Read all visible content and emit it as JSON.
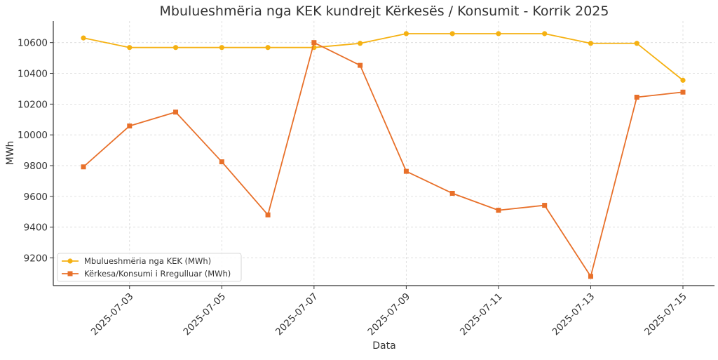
{
  "chart_data": {
    "type": "line",
    "title": "Mbulueshmëria nga KEK kundrejt Kërkesës / Konsumit - Korrik 2025",
    "xlabel": "Data",
    "ylabel": "MWh",
    "x": [
      "2025-07-02",
      "2025-07-03",
      "2025-07-04",
      "2025-07-05",
      "2025-07-06",
      "2025-07-07",
      "2025-07-08",
      "2025-07-09",
      "2025-07-10",
      "2025-07-11",
      "2025-07-12",
      "2025-07-13",
      "2025-07-14",
      "2025-07-15"
    ],
    "x_tick_labels": [
      "2025-07-03",
      "2025-07-05",
      "2025-07-07",
      "2025-07-09",
      "2025-07-11",
      "2025-07-13",
      "2025-07-15"
    ],
    "y_ticks": [
      9200,
      9400,
      9600,
      9800,
      10000,
      10200,
      10400,
      10600
    ],
    "ylim": [
      9020,
      10740
    ],
    "grid": true,
    "legend_position": "lower-left",
    "series": [
      {
        "name": "Mbulueshmëria nga KEK (MWh)",
        "color": "#f5b112",
        "marker": "circle",
        "values": [
          10630,
          10568,
          10568,
          10568,
          10568,
          10568,
          10595,
          10658,
          10658,
          10658,
          10658,
          10595,
          10595,
          10355
        ]
      },
      {
        "name": "Kërkesa/Konsumi i Rregulluar (MWh)",
        "color": "#e8702a",
        "marker": "square",
        "values": [
          9792,
          10058,
          10148,
          9825,
          9480,
          10600,
          10452,
          9763,
          9620,
          9510,
          9542,
          9080,
          10245,
          10278
        ]
      }
    ]
  }
}
